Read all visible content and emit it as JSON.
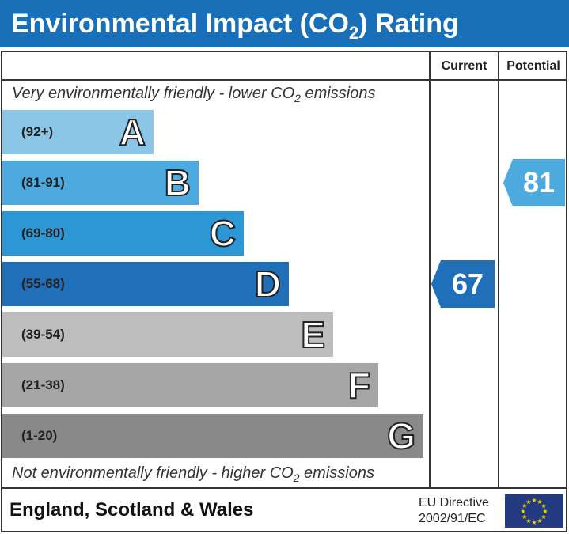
{
  "title": {
    "main": "Environmental Impact (CO",
    "sub": "2",
    "end": ") Rating"
  },
  "columns": {
    "current": "Current",
    "potential": "Potential"
  },
  "top_note": {
    "a": "Very environmentally friendly - lower CO",
    "sub": "2",
    "b": " emissions"
  },
  "bottom_note": {
    "a": "Not environmentally friendly - higher CO",
    "sub": "2",
    "b": " emissions"
  },
  "chart_data": {
    "type": "bar",
    "bands": [
      {
        "letter": "A",
        "range": "(92+)",
        "color": "#8cc6e7"
      },
      {
        "letter": "B",
        "range": "(81-91)",
        "color": "#4caade"
      },
      {
        "letter": "C",
        "range": "(69-80)",
        "color": "#2b97d4"
      },
      {
        "letter": "D",
        "range": "(55-68)",
        "color": "#1f70b8"
      },
      {
        "letter": "E",
        "range": "(39-54)",
        "color": "#bdbdbd"
      },
      {
        "letter": "F",
        "range": "(21-38)",
        "color": "#a5a5a5"
      },
      {
        "letter": "G",
        "range": "(1-20)",
        "color": "#898989"
      }
    ],
    "current": {
      "value": "67",
      "band": "D",
      "color": "#1f70b8"
    },
    "potential": {
      "value": "81",
      "band": "B",
      "color": "#4caade"
    }
  },
  "footer": {
    "region": "England, Scotland & Wales",
    "directive_line1": "EU Directive",
    "directive_line2": "2002/91/EC"
  }
}
